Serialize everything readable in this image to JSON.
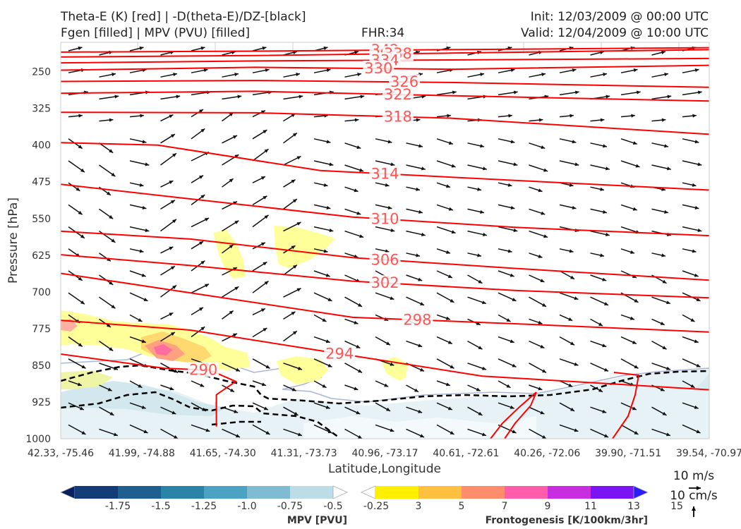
{
  "header": {
    "title_line1": "Theta-E (K) [red] | -D(theta-E)/DZ-[black]",
    "title_line2": "Fgen [filled] | MPV (PVU) [filled]",
    "fhr": "FHR:34",
    "init": "Init: 12/03/2009 @ 00:00 UTC",
    "valid": "Valid: 12/04/2009 @ 10:00 UTC"
  },
  "chart_data": {
    "type": "cross-section",
    "xlabel": "Latitude,Longitude",
    "ylabel": "Pressure [hPa]",
    "x_tick_labels": [
      "42.33, -75.46",
      "41.99, -74.88",
      "41.65, -74.30",
      "41.31, -73.73",
      "40.96, -73.17",
      "40.61, -72.61",
      "40.26, -72.06",
      "39.90, -71.51",
      "39.54, -70.97"
    ],
    "y_ticks": [
      250,
      325,
      400,
      475,
      550,
      625,
      700,
      775,
      850,
      925,
      1000
    ],
    "ylim": [
      1000,
      190
    ],
    "y_scale": "linear-inverted",
    "theta_e_contours": [
      {
        "level": "342",
        "label": "342",
        "label_x": 0.5,
        "points": [
          [
            0,
            210
          ],
          [
            0.3,
            208
          ],
          [
            0.6,
            205
          ],
          [
            1,
            201
          ]
        ]
      },
      {
        "level": "338",
        "label": "338",
        "label_x": 0.52,
        "points": [
          [
            0,
            220
          ],
          [
            0.3,
            217
          ],
          [
            0.6,
            212
          ],
          [
            1,
            205
          ]
        ]
      },
      {
        "level": "334",
        "label": "334",
        "label_x": 0.5,
        "points": [
          [
            0,
            232
          ],
          [
            0.3,
            228
          ],
          [
            0.6,
            226
          ],
          [
            1,
            223
          ]
        ]
      },
      {
        "level": "330",
        "label": "330",
        "label_x": 0.49,
        "points": [
          [
            0,
            247
          ],
          [
            0.3,
            241
          ],
          [
            0.6,
            245
          ],
          [
            1,
            237
          ]
        ]
      },
      {
        "level": "326",
        "label": "326",
        "label_x": 0.53,
        "points": [
          [
            0,
            270
          ],
          [
            0.3,
            268
          ],
          [
            0.6,
            272
          ],
          [
            1,
            282
          ]
        ]
      },
      {
        "level": "322",
        "label": "322",
        "label_x": 0.52,
        "points": [
          [
            0,
            294
          ],
          [
            0.3,
            290
          ],
          [
            0.6,
            299
          ],
          [
            1,
            310
          ]
        ]
      },
      {
        "level": "318",
        "label": "318",
        "label_x": 0.52,
        "points": [
          [
            0,
            333
          ],
          [
            0.3,
            334
          ],
          [
            0.6,
            345
          ],
          [
            1,
            378
          ]
        ]
      },
      {
        "level": "314",
        "label": "314",
        "label_x": 0.5,
        "points": [
          [
            0,
            395
          ],
          [
            0.15,
            400
          ],
          [
            0.4,
            452
          ],
          [
            0.7,
            472
          ],
          [
            1,
            492
          ]
        ]
      },
      {
        "level": "310",
        "label": "310",
        "label_x": 0.5,
        "points": [
          [
            0,
            480
          ],
          [
            0.2,
            510
          ],
          [
            0.45,
            547
          ],
          [
            0.7,
            568
          ],
          [
            1,
            585
          ]
        ]
      },
      {
        "level": "306",
        "label": "306",
        "label_x": 0.5,
        "points": [
          [
            0,
            576
          ],
          [
            0.2,
            592
          ],
          [
            0.45,
            630
          ],
          [
            0.7,
            652
          ],
          [
            1,
            676
          ]
        ]
      },
      {
        "level": "302",
        "label": "302",
        "label_x": 0.5,
        "points": [
          [
            0,
            624
          ],
          [
            0.2,
            646
          ],
          [
            0.45,
            678
          ],
          [
            0.7,
            697
          ],
          [
            1,
            712
          ]
        ]
      },
      {
        "level": "298",
        "label": "298",
        "label_x": 0.55,
        "points": [
          [
            0,
            662
          ],
          [
            0.2,
            702
          ],
          [
            0.45,
            752
          ],
          [
            0.7,
            765
          ],
          [
            1,
            782
          ]
        ]
      },
      {
        "level": "294",
        "label": "294",
        "label_x": 0.43,
        "points": [
          [
            0,
            758
          ],
          [
            0.2,
            778
          ],
          [
            0.4,
            820
          ],
          [
            0.65,
            872
          ],
          [
            1,
            900
          ]
        ]
      },
      {
        "level": "290",
        "label": "290",
        "label_x": 0.22,
        "points": [
          [
            0,
            827
          ],
          [
            0.16,
            856
          ],
          [
            0.23,
            860
          ],
          [
            0.27,
            883
          ],
          [
            0.24,
            910
          ],
          [
            0.24,
            975
          ]
        ]
      }
    ],
    "wind_field_note": "arrows show along-section wind (m/s) and vertical motion (cm/s)",
    "reference_vectors": {
      "horizontal": "10 m/s",
      "vertical": "10 cm/s"
    },
    "colorbars": [
      {
        "name": "MPV [PVU]",
        "ticks": [
          "-1.75",
          "-1.5",
          "-1.25",
          "-1.0",
          "-0.75",
          "-0.5",
          "-0.25"
        ],
        "colors": [
          "#08205e",
          "#143c78",
          "#1f5f8f",
          "#2a84a8",
          "#4ba3c3",
          "#7fbcd2",
          "#bcdde7",
          "#ffffff"
        ]
      },
      {
        "name": "Frontogenesis [K/100km/3hr]",
        "ticks": [
          "3",
          "5",
          "7",
          "9",
          "11",
          "13",
          "15"
        ],
        "colors": [
          "#ffffff",
          "#fff000",
          "#ffc040",
          "#ff8c6a",
          "#ff5cab",
          "#c82ee0",
          "#7a14f5",
          "#2a1dfa"
        ]
      }
    ],
    "colors": {
      "theta_e": "#ff0000",
      "contour_label": "#ff5555",
      "dthetae_dz": "#000000",
      "mpv_light": "#dcebf0",
      "fgen_light": "#ffff9a"
    }
  }
}
